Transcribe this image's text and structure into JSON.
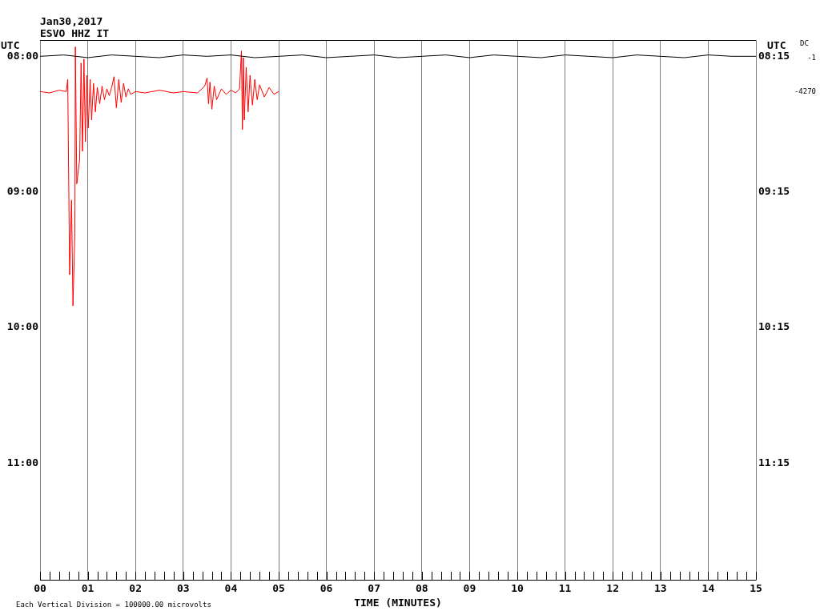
{
  "chart_data": {
    "type": "line",
    "title": "Jan30,2017",
    "subtitle": "ESVO HHZ IT",
    "xlabel": "TIME (MINUTES)",
    "ylabel": "UTC",
    "y2label": "UTC",
    "xlim": [
      0,
      15
    ],
    "ylim": [
      11.86,
      7.88
    ],
    "y2lim": [
      12.11,
      8.13
    ],
    "xticks": [
      {
        "value": 0,
        "label": "00"
      },
      {
        "value": 0.2,
        "label": null
      },
      {
        "value": 0.4,
        "label": null
      },
      {
        "value": 0.6,
        "label": null
      },
      {
        "value": 0.8,
        "label": null
      },
      {
        "value": 1,
        "label": "01"
      },
      {
        "value": 1.2,
        "label": null
      },
      {
        "value": 1.4,
        "label": null
      },
      {
        "value": 1.6,
        "label": null
      },
      {
        "value": 1.8,
        "label": null
      },
      {
        "value": 2,
        "label": "02"
      },
      {
        "value": 2.2,
        "label": null
      },
      {
        "value": 2.4,
        "label": null
      },
      {
        "value": 2.6,
        "label": null
      },
      {
        "value": 2.8,
        "label": null
      },
      {
        "value": 3,
        "label": "03"
      },
      {
        "value": 3.2,
        "label": null
      },
      {
        "value": 3.4,
        "label": null
      },
      {
        "value": 3.6,
        "label": null
      },
      {
        "value": 3.8,
        "label": null
      },
      {
        "value": 4,
        "label": "04"
      },
      {
        "value": 4.2,
        "label": null
      },
      {
        "value": 4.4,
        "label": null
      },
      {
        "value": 4.6,
        "label": null
      },
      {
        "value": 4.8,
        "label": null
      },
      {
        "value": 5,
        "label": "05"
      },
      {
        "value": 5.2,
        "label": null
      },
      {
        "value": 5.4,
        "label": null
      },
      {
        "value": 5.6,
        "label": null
      },
      {
        "value": 5.8,
        "label": null
      },
      {
        "value": 6,
        "label": "06"
      },
      {
        "value": 6.2,
        "label": null
      },
      {
        "value": 6.4,
        "label": null
      },
      {
        "value": 6.6,
        "label": null
      },
      {
        "value": 6.8,
        "label": null
      },
      {
        "value": 7,
        "label": "07"
      },
      {
        "value": 7.2,
        "label": null
      },
      {
        "value": 7.4,
        "label": null
      },
      {
        "value": 7.6,
        "label": null
      },
      {
        "value": 7.8,
        "label": null
      },
      {
        "value": 8,
        "label": "08"
      },
      {
        "value": 8.2,
        "label": null
      },
      {
        "value": 8.4,
        "label": null
      },
      {
        "value": 8.6,
        "label": null
      },
      {
        "value": 8.8,
        "label": null
      },
      {
        "value": 9,
        "label": "09"
      },
      {
        "value": 9.2,
        "label": null
      },
      {
        "value": 9.4,
        "label": null
      },
      {
        "value": 9.6,
        "label": null
      },
      {
        "value": 9.8,
        "label": null
      },
      {
        "value": 10,
        "label": "10"
      },
      {
        "value": 10.2,
        "label": null
      },
      {
        "value": 10.4,
        "label": null
      },
      {
        "value": 10.6,
        "label": null
      },
      {
        "value": 10.8,
        "label": null
      },
      {
        "value": 11,
        "label": "11"
      },
      {
        "value": 11.2,
        "label": null
      },
      {
        "value": 11.4,
        "label": null
      },
      {
        "value": 11.6,
        "label": null
      },
      {
        "value": 11.8,
        "label": null
      },
      {
        "value": 12,
        "label": "12"
      },
      {
        "value": 12.2,
        "label": null
      },
      {
        "value": 12.4,
        "label": null
      },
      {
        "value": 12.6,
        "label": null
      },
      {
        "value": 12.8,
        "label": null
      },
      {
        "value": 13,
        "label": "13"
      },
      {
        "value": 13.2,
        "label": null
      },
      {
        "value": 13.4,
        "label": null
      },
      {
        "value": 13.6,
        "label": null
      },
      {
        "value": 13.8,
        "label": null
      },
      {
        "value": 14,
        "label": "14"
      },
      {
        "value": 14.2,
        "label": null
      },
      {
        "value": 14.4,
        "label": null
      },
      {
        "value": 14.6,
        "label": null
      },
      {
        "value": 14.8,
        "label": null
      },
      {
        "value": 15,
        "label": "15"
      }
    ],
    "yticks": [
      {
        "value": 8,
        "label": "08:00"
      },
      {
        "value": 9,
        "label": "09:00"
      },
      {
        "value": 10,
        "label": "10:00"
      },
      {
        "value": 11,
        "label": "11:00"
      }
    ],
    "y2ticks": [
      {
        "value": 8.25,
        "label": "08:15"
      },
      {
        "value": 9.25,
        "label": "09:15"
      },
      {
        "value": 10.25,
        "label": "10:15"
      },
      {
        "value": 11.25,
        "label": "11:15"
      }
    ],
    "grid": "x",
    "legend": false,
    "marker": "none",
    "line_style": "solid",
    "series": [
      {
        "color": "#000000",
        "x": [
          0,
          0.5,
          1,
          1.5,
          2,
          2.5,
          3,
          3.5,
          4,
          4.5,
          5,
          5.5,
          6,
          6.5,
          7,
          7.5,
          8,
          8.5,
          9,
          9.5,
          10,
          10.5,
          11,
          11.5,
          12,
          12.5,
          13,
          13.5,
          14,
          14.5,
          15
        ],
        "values": [
          8.0,
          7.99,
          8.01,
          7.99,
          8.0,
          8.01,
          7.99,
          8.0,
          7.99,
          8.01,
          8.0,
          7.99,
          8.01,
          8.0,
          7.99,
          8.01,
          8.0,
          7.99,
          8.01,
          7.99,
          8.0,
          8.01,
          7.99,
          8.0,
          8.01,
          7.99,
          8.0,
          8.01,
          7.99,
          8.0,
          8.0
        ]
      },
      {
        "color": "#ff0000",
        "x": [
          0,
          0.2,
          0.4,
          0.55,
          0.58,
          0.6,
          0.62,
          0.64,
          0.66,
          0.68,
          0.69,
          0.71,
          0.73,
          0.74,
          0.77,
          0.8,
          0.83,
          0.86,
          0.89,
          0.92,
          0.95,
          0.98,
          1.01,
          1.05,
          1.08,
          1.12,
          1.16,
          1.2,
          1.25,
          1.3,
          1.35,
          1.4,
          1.45,
          1.5,
          1.55,
          1.6,
          1.65,
          1.7,
          1.75,
          1.8,
          1.85,
          1.9,
          2.0,
          2.2,
          2.5,
          2.8,
          3.0,
          3.3,
          3.45,
          3.5,
          3.53,
          3.56,
          3.6,
          3.65,
          3.7,
          3.8,
          3.9,
          4.0,
          4.1,
          4.18,
          4.22,
          4.24,
          4.26,
          4.28,
          4.32,
          4.36,
          4.4,
          4.45,
          4.5,
          4.55,
          4.6,
          4.7,
          4.8,
          4.9,
          5.0
        ],
        "values": [
          8.26,
          8.27,
          8.25,
          8.26,
          8.17,
          null,
          9.61,
          null,
          9.06,
          null,
          9.84,
          null,
          9.3,
          7.93,
          8.94,
          null,
          8.76,
          8.05,
          8.7,
          8.02,
          8.63,
          8.14,
          8.53,
          8.17,
          8.47,
          8.2,
          8.41,
          8.23,
          8.35,
          8.22,
          8.32,
          8.24,
          8.29,
          8.23,
          8.15,
          8.38,
          8.17,
          8.34,
          8.2,
          8.3,
          8.24,
          8.28,
          8.26,
          8.27,
          8.25,
          8.27,
          8.26,
          8.27,
          8.22,
          8.16,
          8.35,
          8.19,
          8.39,
          8.22,
          8.32,
          8.24,
          8.28,
          8.25,
          8.27,
          8.24,
          7.96,
          8.54,
          8.01,
          8.47,
          8.08,
          8.41,
          8.14,
          8.36,
          8.17,
          8.32,
          8.21,
          8.3,
          8.23,
          8.28,
          8.26
        ]
      }
    ],
    "annotations": [
      "DC",
      "-1",
      "-4270",
      "Each Vertical Division = 100000.00 microvolts"
    ]
  }
}
